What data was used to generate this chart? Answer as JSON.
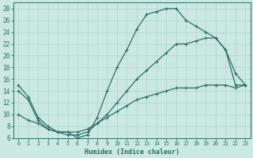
{
  "xlabel": "Humidex (Indice chaleur)",
  "background_color": "#cbe8e3",
  "line_color": "#2d6e64",
  "grid_color": "#b0d8d0",
  "xlim": [
    -0.5,
    23.5
  ],
  "ylim": [
    6,
    29
  ],
  "xticks": [
    0,
    1,
    2,
    3,
    4,
    5,
    6,
    7,
    8,
    9,
    10,
    11,
    12,
    13,
    14,
    15,
    16,
    17,
    18,
    19,
    20,
    21,
    22,
    23
  ],
  "yticks": [
    6,
    8,
    10,
    12,
    14,
    16,
    18,
    20,
    22,
    24,
    26,
    28
  ],
  "curve1_x": [
    0,
    1,
    2,
    3,
    4,
    5,
    6,
    7,
    8,
    9,
    10,
    11,
    12,
    13,
    14,
    15,
    16,
    17,
    18,
    19,
    20,
    21,
    22,
    23
  ],
  "curve1_y": [
    15,
    13,
    9.5,
    8,
    7,
    7,
    6,
    6.5,
    9.5,
    14,
    18,
    21,
    24.5,
    27,
    27.5,
    28,
    28,
    26,
    25,
    24,
    23,
    21,
    17,
    15
  ],
  "curve2_x": [
    0,
    1,
    2,
    3,
    4,
    5,
    6,
    7,
    8,
    9,
    10,
    11,
    12,
    13,
    14,
    15,
    16,
    17,
    18,
    19,
    20,
    21,
    22,
    23
  ],
  "curve2_y": [
    14,
    12.5,
    9,
    7.5,
    7,
    6.5,
    6.5,
    7,
    8.5,
    10,
    12,
    14,
    16,
    17.5,
    19,
    20.5,
    22,
    22,
    22.5,
    23,
    23,
    21,
    15,
    15
  ],
  "curve3_x": [
    0,
    1,
    2,
    3,
    4,
    5,
    6,
    7,
    8,
    9,
    10,
    11,
    12,
    13,
    14,
    15,
    16,
    17,
    18,
    19,
    20,
    21,
    22,
    23
  ],
  "curve3_y": [
    10,
    9,
    8.5,
    7.5,
    7,
    7,
    7,
    7.5,
    8.5,
    9.5,
    10.5,
    11.5,
    12.5,
    13,
    13.5,
    14,
    14.5,
    14.5,
    14.5,
    15,
    15,
    15,
    14.5,
    15
  ]
}
